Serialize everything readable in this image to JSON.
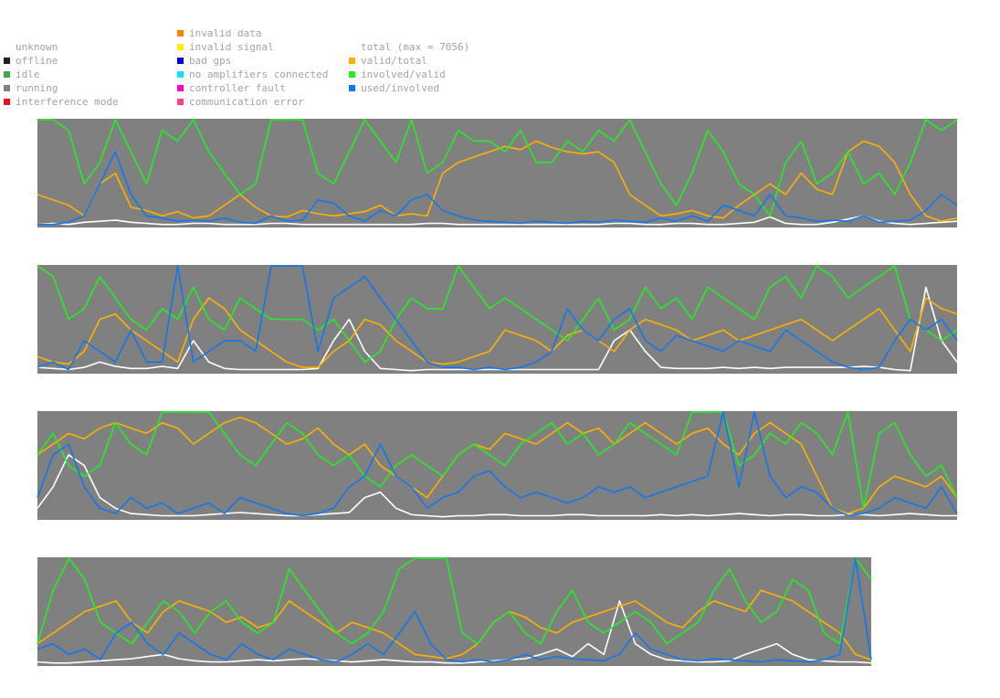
{
  "legend": {
    "status": [
      {
        "label": "unknown",
        "color": ""
      },
      {
        "label": "offline",
        "color": "#1e1e1e"
      },
      {
        "label": "idle",
        "color": "#3faa3f"
      },
      {
        "label": "running",
        "color": "#808080"
      },
      {
        "label": "interference mode",
        "color": "#ee1111"
      }
    ],
    "errors": [
      {
        "label": "invalid data",
        "color": "#ff7f00"
      },
      {
        "label": "invalid signal",
        "color": "#ffee00"
      },
      {
        "label": "bad gps",
        "color": "#0000dd"
      },
      {
        "label": "no amplifiers connected",
        "color": "#00e5ff"
      },
      {
        "label": "controller fault",
        "color": "#ff00cc"
      },
      {
        "label": "communication error",
        "color": "#ff3f80"
      }
    ],
    "lines": [
      {
        "label": "total (max = 7056)",
        "color": ""
      },
      {
        "label": "valid/total",
        "color": "#ffb000"
      },
      {
        "label": "involved/valid",
        "color": "#22ee22"
      },
      {
        "label": "used/involved",
        "color": "#1177ee"
      }
    ]
  },
  "chart_data": {
    "type": "line",
    "background_color": "#808080",
    "y_range": [
      0,
      1
    ],
    "total_max": 7056,
    "colors": {
      "total": "#ffffff",
      "valid_total": "#ffb000",
      "involved_valid": "#22ee22",
      "used_involved": "#1177ee"
    },
    "panels": [
      {
        "total": [
          0.02,
          0.03,
          0.02,
          0.04,
          0.05,
          0.06,
          0.04,
          0.03,
          0.02,
          0.02,
          0.03,
          0.03,
          0.02,
          0.02,
          0.02,
          0.03,
          0.03,
          0.02,
          0.02,
          0.02,
          0.02,
          0.02,
          0.02,
          0.02,
          0.02,
          0.03,
          0.03,
          0.02,
          0.02,
          0.02,
          0.02,
          0.02,
          0.02,
          0.02,
          0.02,
          0.02,
          0.02,
          0.03,
          0.03,
          0.02,
          0.02,
          0.03,
          0.03,
          0.02,
          0.02,
          0.03,
          0.04,
          0.09,
          0.03,
          0.02,
          0.02,
          0.04,
          0.07,
          0.1,
          0.05,
          0.03,
          0.02,
          0.03,
          0.04,
          0.05
        ],
        "valid_total": [
          0.3,
          0.25,
          0.2,
          0.1,
          0.4,
          0.5,
          0.18,
          0.15,
          0.1,
          0.14,
          0.08,
          0.1,
          0.2,
          0.3,
          0.18,
          0.1,
          0.09,
          0.15,
          0.12,
          0.1,
          0.12,
          0.14,
          0.2,
          0.1,
          0.12,
          0.1,
          0.5,
          0.6,
          0.65,
          0.7,
          0.75,
          0.72,
          0.8,
          0.74,
          0.7,
          0.68,
          0.7,
          0.6,
          0.3,
          0.2,
          0.1,
          0.12,
          0.15,
          0.1,
          0.08,
          0.2,
          0.3,
          0.4,
          0.3,
          0.5,
          0.35,
          0.3,
          0.7,
          0.8,
          0.75,
          0.6,
          0.3,
          0.1,
          0.05,
          0.08
        ],
        "involved_valid": [
          1.0,
          1.0,
          0.9,
          0.4,
          0.6,
          1.0,
          0.7,
          0.4,
          0.9,
          0.8,
          1.0,
          0.7,
          0.5,
          0.3,
          0.4,
          1.0,
          1.0,
          1.0,
          0.5,
          0.4,
          0.7,
          1.0,
          0.8,
          0.6,
          1.0,
          0.5,
          0.6,
          0.9,
          0.8,
          0.8,
          0.7,
          0.9,
          0.6,
          0.6,
          0.8,
          0.7,
          0.9,
          0.8,
          1.0,
          0.7,
          0.4,
          0.2,
          0.5,
          0.9,
          0.7,
          0.4,
          0.3,
          0.1,
          0.6,
          0.8,
          0.4,
          0.5,
          0.7,
          0.4,
          0.5,
          0.3,
          0.6,
          1.0,
          0.9,
          1.0
        ],
        "used_involved": [
          0.02,
          0.02,
          0.04,
          0.1,
          0.4,
          0.7,
          0.3,
          0.1,
          0.08,
          0.05,
          0.06,
          0.05,
          0.08,
          0.04,
          0.03,
          0.1,
          0.05,
          0.06,
          0.25,
          0.22,
          0.1,
          0.05,
          0.15,
          0.1,
          0.25,
          0.3,
          0.15,
          0.1,
          0.06,
          0.05,
          0.04,
          0.03,
          0.05,
          0.04,
          0.03,
          0.05,
          0.04,
          0.06,
          0.05,
          0.04,
          0.08,
          0.05,
          0.1,
          0.05,
          0.2,
          0.15,
          0.1,
          0.3,
          0.1,
          0.08,
          0.05,
          0.06,
          0.05,
          0.1,
          0.04,
          0.05,
          0.06,
          0.15,
          0.3,
          0.2
        ]
      },
      {
        "total": [
          0.05,
          0.04,
          0.03,
          0.05,
          0.1,
          0.06,
          0.04,
          0.04,
          0.06,
          0.04,
          0.3,
          0.1,
          0.04,
          0.03,
          0.03,
          0.03,
          0.03,
          0.03,
          0.04,
          0.3,
          0.5,
          0.2,
          0.04,
          0.03,
          0.02,
          0.03,
          0.03,
          0.03,
          0.03,
          0.03,
          0.03,
          0.03,
          0.03,
          0.03,
          0.03,
          0.03,
          0.03,
          0.3,
          0.4,
          0.2,
          0.05,
          0.04,
          0.04,
          0.04,
          0.05,
          0.04,
          0.05,
          0.04,
          0.05,
          0.05,
          0.05,
          0.05,
          0.05,
          0.06,
          0.05,
          0.03,
          0.02,
          0.8,
          0.3,
          0.1
        ],
        "valid_total": [
          0.15,
          0.1,
          0.08,
          0.2,
          0.5,
          0.55,
          0.4,
          0.3,
          0.2,
          0.1,
          0.5,
          0.7,
          0.6,
          0.4,
          0.3,
          0.2,
          0.1,
          0.05,
          0.05,
          0.2,
          0.3,
          0.5,
          0.45,
          0.3,
          0.2,
          0.1,
          0.08,
          0.1,
          0.15,
          0.2,
          0.4,
          0.35,
          0.3,
          0.2,
          0.35,
          0.4,
          0.3,
          0.2,
          0.4,
          0.5,
          0.45,
          0.4,
          0.3,
          0.35,
          0.4,
          0.3,
          0.35,
          0.4,
          0.45,
          0.5,
          0.4,
          0.3,
          0.4,
          0.5,
          0.6,
          0.4,
          0.2,
          0.7,
          0.6,
          0.55
        ],
        "involved_valid": [
          1.0,
          0.9,
          0.5,
          0.6,
          0.9,
          0.7,
          0.5,
          0.4,
          0.6,
          0.5,
          0.8,
          0.5,
          0.4,
          0.7,
          0.6,
          0.5,
          0.5,
          0.5,
          0.4,
          0.5,
          0.3,
          0.1,
          0.2,
          0.5,
          0.7,
          0.6,
          0.6,
          1.0,
          0.8,
          0.6,
          0.7,
          0.6,
          0.5,
          0.4,
          0.3,
          0.5,
          0.7,
          0.4,
          0.5,
          0.8,
          0.6,
          0.7,
          0.5,
          0.8,
          0.7,
          0.6,
          0.5,
          0.8,
          0.9,
          0.7,
          1.0,
          0.9,
          0.7,
          0.8,
          0.9,
          1.0,
          0.5,
          0.4,
          0.3,
          0.4
        ],
        "used_involved": [
          0.05,
          0.1,
          0.03,
          0.3,
          0.2,
          0.1,
          0.4,
          0.1,
          0.1,
          1.0,
          0.1,
          0.2,
          0.3,
          0.3,
          0.2,
          1.0,
          1.0,
          1.0,
          0.2,
          0.7,
          0.8,
          0.9,
          0.7,
          0.5,
          0.3,
          0.1,
          0.05,
          0.05,
          0.03,
          0.05,
          0.03,
          0.05,
          0.1,
          0.2,
          0.6,
          0.4,
          0.3,
          0.5,
          0.6,
          0.3,
          0.2,
          0.35,
          0.3,
          0.25,
          0.2,
          0.3,
          0.25,
          0.2,
          0.4,
          0.3,
          0.2,
          0.1,
          0.05,
          0.03,
          0.05,
          0.3,
          0.5,
          0.4,
          0.5,
          0.3
        ]
      },
      {
        "total": [
          0.1,
          0.3,
          0.6,
          0.5,
          0.2,
          0.1,
          0.05,
          0.04,
          0.03,
          0.03,
          0.03,
          0.04,
          0.05,
          0.06,
          0.05,
          0.04,
          0.03,
          0.03,
          0.04,
          0.05,
          0.06,
          0.2,
          0.25,
          0.1,
          0.04,
          0.03,
          0.02,
          0.03,
          0.03,
          0.04,
          0.04,
          0.03,
          0.03,
          0.03,
          0.04,
          0.04,
          0.03,
          0.03,
          0.03,
          0.03,
          0.04,
          0.03,
          0.04,
          0.03,
          0.04,
          0.05,
          0.04,
          0.03,
          0.04,
          0.04,
          0.03,
          0.03,
          0.04,
          0.04,
          0.03,
          0.04,
          0.05,
          0.04,
          0.03,
          0.03
        ],
        "valid_total": [
          0.6,
          0.7,
          0.8,
          0.75,
          0.85,
          0.9,
          0.85,
          0.8,
          0.9,
          0.85,
          0.7,
          0.8,
          0.9,
          0.95,
          0.9,
          0.8,
          0.7,
          0.75,
          0.85,
          0.7,
          0.6,
          0.7,
          0.5,
          0.4,
          0.3,
          0.2,
          0.4,
          0.6,
          0.7,
          0.65,
          0.8,
          0.75,
          0.7,
          0.8,
          0.9,
          0.8,
          0.85,
          0.7,
          0.8,
          0.9,
          0.8,
          0.7,
          0.8,
          0.85,
          0.7,
          0.6,
          0.8,
          0.9,
          0.8,
          0.7,
          0.4,
          0.1,
          0.05,
          0.1,
          0.3,
          0.4,
          0.35,
          0.3,
          0.4,
          0.2
        ],
        "involved_valid": [
          0.6,
          0.8,
          0.5,
          0.4,
          0.5,
          0.9,
          0.7,
          0.6,
          1.0,
          1.0,
          1.0,
          1.0,
          0.8,
          0.6,
          0.5,
          0.7,
          0.9,
          0.8,
          0.6,
          0.5,
          0.6,
          0.4,
          0.3,
          0.5,
          0.6,
          0.5,
          0.4,
          0.6,
          0.7,
          0.6,
          0.5,
          0.7,
          0.8,
          0.9,
          0.7,
          0.8,
          0.6,
          0.7,
          0.9,
          0.8,
          0.7,
          0.6,
          1.0,
          1.0,
          1.0,
          0.5,
          0.6,
          0.8,
          0.7,
          0.9,
          0.8,
          0.6,
          1.0,
          0.1,
          0.8,
          0.9,
          0.6,
          0.4,
          0.5,
          0.2
        ],
        "used_involved": [
          0.2,
          0.6,
          0.7,
          0.3,
          0.1,
          0.05,
          0.2,
          0.1,
          0.15,
          0.05,
          0.1,
          0.15,
          0.05,
          0.2,
          0.15,
          0.1,
          0.05,
          0.03,
          0.05,
          0.1,
          0.3,
          0.4,
          0.7,
          0.4,
          0.3,
          0.1,
          0.2,
          0.25,
          0.4,
          0.45,
          0.3,
          0.2,
          0.25,
          0.2,
          0.15,
          0.2,
          0.3,
          0.25,
          0.3,
          0.2,
          0.25,
          0.3,
          0.35,
          0.4,
          1.0,
          0.3,
          1.0,
          0.4,
          0.2,
          0.3,
          0.25,
          0.1,
          0.03,
          0.05,
          0.1,
          0.2,
          0.15,
          0.1,
          0.3,
          0.05
        ]
      },
      {
        "total": [
          0.03,
          0.02,
          0.02,
          0.03,
          0.04,
          0.05,
          0.06,
          0.08,
          0.1,
          0.06,
          0.04,
          0.03,
          0.03,
          0.04,
          0.05,
          0.04,
          0.05,
          0.06,
          0.05,
          0.04,
          0.03,
          0.04,
          0.05,
          0.04,
          0.03,
          0.03,
          0.02,
          0.02,
          0.03,
          0.04,
          0.05,
          0.06,
          0.1,
          0.15,
          0.08,
          0.2,
          0.1,
          0.6,
          0.2,
          0.1,
          0.05,
          0.04,
          0.03,
          0.03,
          0.04,
          0.1,
          0.15,
          0.2,
          0.1,
          0.05,
          0.04,
          0.03,
          0.03,
          0.02
        ],
        "valid_total": [
          0.2,
          0.3,
          0.4,
          0.5,
          0.55,
          0.6,
          0.4,
          0.3,
          0.5,
          0.6,
          0.55,
          0.5,
          0.4,
          0.45,
          0.35,
          0.4,
          0.6,
          0.5,
          0.4,
          0.3,
          0.4,
          0.35,
          0.3,
          0.2,
          0.1,
          0.08,
          0.06,
          0.1,
          0.2,
          0.4,
          0.5,
          0.45,
          0.35,
          0.3,
          0.4,
          0.45,
          0.5,
          0.55,
          0.6,
          0.5,
          0.4,
          0.35,
          0.5,
          0.6,
          0.55,
          0.5,
          0.7,
          0.65,
          0.6,
          0.5,
          0.4,
          0.3,
          0.1,
          0.05
        ],
        "involved_valid": [
          0.2,
          0.7,
          1.0,
          0.8,
          0.4,
          0.3,
          0.2,
          0.4,
          0.6,
          0.5,
          0.3,
          0.5,
          0.6,
          0.4,
          0.3,
          0.4,
          0.9,
          0.7,
          0.5,
          0.3,
          0.2,
          0.3,
          0.5,
          0.9,
          1.0,
          1.0,
          1.0,
          0.3,
          0.2,
          0.4,
          0.5,
          0.3,
          0.2,
          0.5,
          0.7,
          0.4,
          0.3,
          0.4,
          0.5,
          0.4,
          0.2,
          0.3,
          0.4,
          0.7,
          0.9,
          0.6,
          0.4,
          0.5,
          0.8,
          0.7,
          0.3,
          0.2,
          1.0,
          0.8
        ],
        "used_involved": [
          0.15,
          0.2,
          0.1,
          0.15,
          0.05,
          0.3,
          0.4,
          0.2,
          0.1,
          0.3,
          0.2,
          0.1,
          0.05,
          0.2,
          0.1,
          0.05,
          0.15,
          0.1,
          0.05,
          0.03,
          0.1,
          0.2,
          0.1,
          0.3,
          0.5,
          0.2,
          0.05,
          0.03,
          0.05,
          0.03,
          0.05,
          0.1,
          0.05,
          0.08,
          0.06,
          0.05,
          0.04,
          0.1,
          0.3,
          0.15,
          0.1,
          0.05,
          0.04,
          0.06,
          0.05,
          0.04,
          0.03,
          0.05,
          0.04,
          0.03,
          0.05,
          0.1,
          1.0,
          0.05
        ]
      }
    ]
  }
}
